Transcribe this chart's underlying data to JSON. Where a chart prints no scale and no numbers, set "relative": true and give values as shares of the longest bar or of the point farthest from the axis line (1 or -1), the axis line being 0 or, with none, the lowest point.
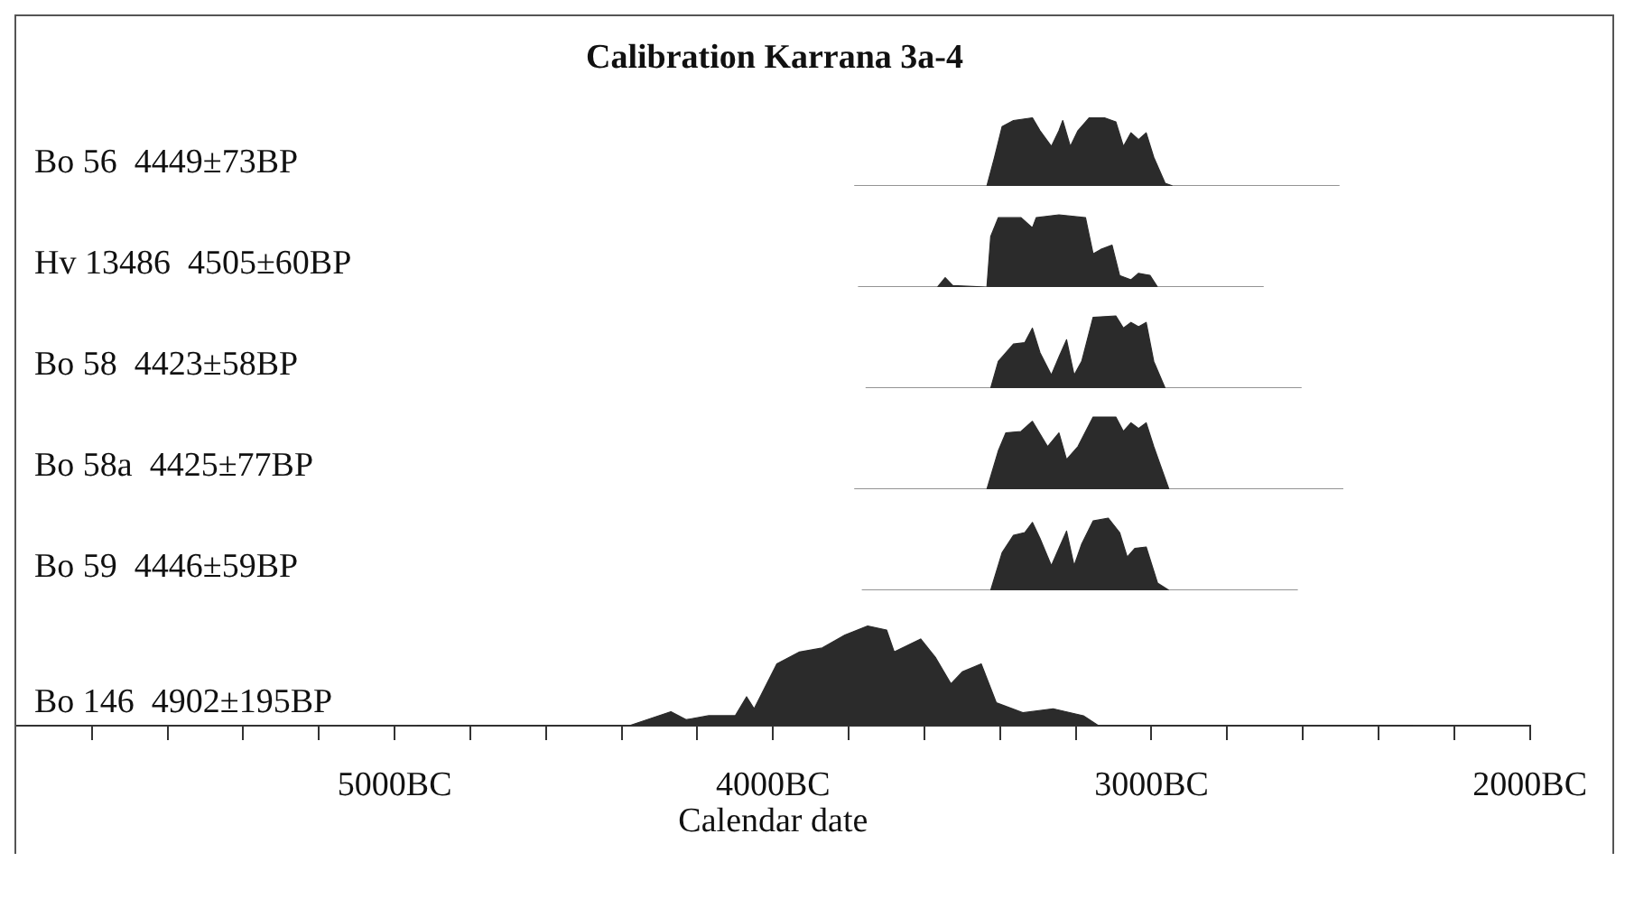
{
  "chart_data": [
    {
      "type": "area",
      "title": "Calibration Karrana 3a-4",
      "relative": true,
      "tick_labels": false,
      "xlim": [
        -6000,
        -2000
      ],
      "series": [
        {
          "name": "Bo 56  4449±73BP",
          "color": "#2b2b2b",
          "x": [
            -3790,
            -3440,
            -3420,
            -3400,
            -3370,
            -3320,
            -3300,
            -3270,
            -3250,
            -3240,
            -3220,
            -3200,
            -3170,
            -3130,
            -3100,
            -3080,
            -3060,
            -3040,
            -3020,
            -3000,
            -2970,
            -2950,
            -2510
          ],
          "values": [
            0,
            0,
            0.42,
            0.87,
            0.96,
            1,
            0.81,
            0.58,
            0.81,
            0.96,
            0.58,
            0.81,
            1,
            1,
            0.94,
            0.58,
            0.78,
            0.68,
            0.78,
            0.42,
            0.04,
            0,
            0
          ]
        }
      ]
    },
    {
      "type": "area",
      "relative": true,
      "tick_labels": false,
      "xlim": [
        -6000,
        -2000
      ],
      "series": [
        {
          "name": "Hv 13486  4505±60BP",
          "color": "#2b2b2b",
          "x": [
            -3780,
            -3570,
            -3550,
            -3530,
            -3440,
            -3430,
            -3410,
            -3350,
            -3320,
            -3310,
            -3250,
            -3180,
            -3160,
            -3140,
            -3110,
            -3090,
            -3060,
            -3040,
            -3010,
            -2990,
            -2710
          ],
          "values": [
            0,
            0,
            0.13,
            0.02,
            0,
            0.7,
            0.96,
            0.96,
            0.82,
            0.96,
            1,
            0.96,
            0.46,
            0.52,
            0.58,
            0.16,
            0.1,
            0.19,
            0.16,
            0,
            0
          ]
        }
      ]
    },
    {
      "type": "area",
      "relative": true,
      "tick_labels": false,
      "xlim": [
        -6000,
        -2000
      ],
      "series": [
        {
          "name": "Bo 58  4423±58BP",
          "color": "#2b2b2b",
          "x": [
            -3760,
            -3430,
            -3410,
            -3370,
            -3340,
            -3320,
            -3300,
            -3270,
            -3250,
            -3230,
            -3210,
            -3190,
            -3160,
            -3100,
            -3080,
            -3060,
            -3040,
            -3020,
            -3000,
            -2970,
            -2610
          ],
          "values": [
            0,
            0,
            0.37,
            0.61,
            0.63,
            0.83,
            0.49,
            0.18,
            0.43,
            0.67,
            0.18,
            0.37,
            0.98,
            1,
            0.83,
            0.91,
            0.85,
            0.91,
            0.37,
            0,
            0
          ]
        }
      ]
    },
    {
      "type": "area",
      "relative": true,
      "tick_labels": false,
      "xlim": [
        -6000,
        -2000
      ],
      "series": [
        {
          "name": "Bo 58a  4425±77BP",
          "color": "#2b2b2b",
          "x": [
            -3790,
            -3440,
            -3410,
            -3390,
            -3350,
            -3320,
            -3280,
            -3250,
            -3230,
            -3200,
            -3160,
            -3100,
            -3080,
            -3060,
            -3040,
            -3020,
            -3000,
            -2960,
            -2500
          ],
          "values": [
            0,
            0,
            0.53,
            0.78,
            0.8,
            0.94,
            0.59,
            0.78,
            0.41,
            0.59,
            1,
            1,
            0.8,
            0.92,
            0.84,
            0.92,
            0.59,
            0,
            0
          ]
        }
      ]
    },
    {
      "type": "area",
      "relative": true,
      "tick_labels": false,
      "xlim": [
        -6000,
        -2000
      ],
      "series": [
        {
          "name": "Bo 59  4446±59BP",
          "color": "#2b2b2b",
          "x": [
            -3770,
            -3430,
            -3400,
            -3370,
            -3340,
            -3320,
            -3300,
            -3270,
            -3250,
            -3230,
            -3210,
            -3190,
            -3160,
            -3120,
            -3090,
            -3070,
            -3050,
            -3020,
            -2990,
            -2960,
            -2620
          ],
          "values": [
            0,
            0,
            0.52,
            0.76,
            0.8,
            0.94,
            0.72,
            0.34,
            0.58,
            0.82,
            0.34,
            0.64,
            0.96,
            1,
            0.8,
            0.46,
            0.58,
            0.6,
            0.1,
            0,
            0
          ]
        }
      ]
    },
    {
      "type": "area",
      "relative": true,
      "tick_labels": "x",
      "xlabel": "Calendar date",
      "xlim": [
        -6000,
        -2000
      ],
      "xticks": [
        {
          "value": -5800,
          "label": null
        },
        {
          "value": -5600,
          "label": null
        },
        {
          "value": -5400,
          "label": null
        },
        {
          "value": -5200,
          "label": null
        },
        {
          "value": -5000,
          "label": "5000BC"
        },
        {
          "value": -4800,
          "label": null
        },
        {
          "value": -4600,
          "label": null
        },
        {
          "value": -4400,
          "label": null
        },
        {
          "value": -4200,
          "label": null
        },
        {
          "value": -4000,
          "label": "4000BC"
        },
        {
          "value": -3800,
          "label": null
        },
        {
          "value": -3600,
          "label": null
        },
        {
          "value": -3400,
          "label": null
        },
        {
          "value": -3200,
          "label": null
        },
        {
          "value": -3000,
          "label": "3000BC"
        },
        {
          "value": -2800,
          "label": null
        },
        {
          "value": -2600,
          "label": null
        },
        {
          "value": -2400,
          "label": null
        },
        {
          "value": -2200,
          "label": null
        },
        {
          "value": -2000,
          "label": "2000BC"
        }
      ],
      "series": [
        {
          "name": "Bo 146  4902±195BP",
          "color": "#2b2b2b",
          "x": [
            -4940,
            -4380,
            -4270,
            -4230,
            -4170,
            -4100,
            -4070,
            -4050,
            -3990,
            -3930,
            -3870,
            -3810,
            -3750,
            -3700,
            -3680,
            -3610,
            -3570,
            -3530,
            -3500,
            -3450,
            -3410,
            -3340,
            -3260,
            -3180,
            -3140,
            -2310
          ],
          "values": [
            0,
            0,
            0.14,
            0.06,
            0.1,
            0.1,
            0.29,
            0.17,
            0.62,
            0.74,
            0.78,
            0.91,
            1,
            0.96,
            0.74,
            0.87,
            0.68,
            0.42,
            0.54,
            0.62,
            0.23,
            0.13,
            0.17,
            0.1,
            0,
            0
          ]
        }
      ]
    }
  ]
}
